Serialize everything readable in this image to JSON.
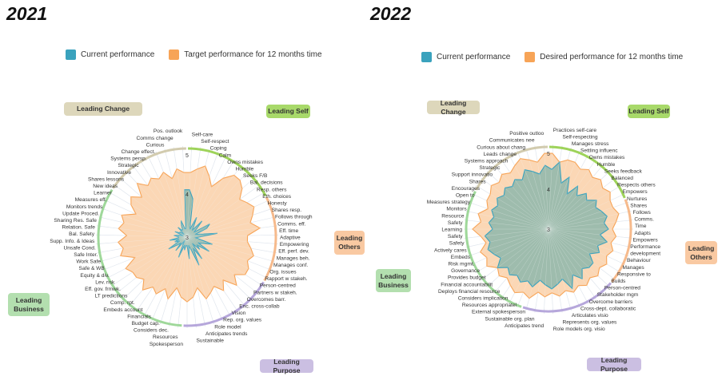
{
  "colors": {
    "current": "#3aa2bd",
    "target": "#f7a457",
    "current_fill": "#7fb3ab",
    "target_fill": "#fbd3ad",
    "self": "#a8d96a",
    "others": "#f9c9a2",
    "purpose": "#cbbfe2",
    "business": "#b3dfaf",
    "change": "#ddd7bb",
    "self_arc": "#9ed35a",
    "others_arc": "#f6ba8c",
    "purpose_arc": "#b6a7db",
    "business_arc": "#9fd89a",
    "change_arc": "#d2cbae"
  },
  "chart_data": [
    {
      "type": "radar",
      "title": "2021",
      "legend": [
        "Current performance",
        "Target performance for 12 months time"
      ],
      "rlim": [
        3,
        5
      ],
      "rticks": [
        "3",
        "4",
        "5"
      ],
      "groups": [
        {
          "key": "self",
          "label": "Leading Self",
          "count": 11
        },
        {
          "key": "others",
          "label": "Leading Others",
          "count": 10
        },
        {
          "key": "purpose",
          "label": "Leading Purpose",
          "count": 11
        },
        {
          "key": "business",
          "label": "Leading Business",
          "count": 21
        },
        {
          "key": "change",
          "label": "Leading Change",
          "count": 10
        }
      ],
      "axes": [
        "Self-care",
        "Self-respect",
        "Coping",
        "Calm",
        "Owns mistakes",
        "Humble",
        "Seeks F/B",
        "Bal. decisions",
        "Resp. others",
        "Eth. choices",
        "Honesty",
        "Shares resp.",
        "Follows through",
        "Comms. eff.",
        "Eff. time",
        "Adaptive",
        "Empowering",
        "Eff. perf. dev.",
        "Manages beh.",
        "Manages conf.",
        "Org. issues",
        "Rapport w stakeh.",
        "Person-centred",
        "Partners w stakeh.",
        "Overcomes barr.",
        "Enc. cross-collab",
        "Vision",
        "Rep. org. values",
        "Role model",
        "Anticipates trends",
        "Sustainable",
        "Spokesperson",
        "Resources",
        "Considers dec.",
        "Budget cap.",
        "Financials",
        "Embeds account",
        "Comp. rpt.",
        "LT predictions",
        "Eff. gov. frmwk.",
        "Lev. risk",
        "Equity & div.",
        "Safe & WB",
        "Work Safe",
        "Safe Inter.",
        "Unsafe Cond.",
        "Supp. Info. & Ideas",
        "Bal. Safety",
        "Relation. Safe",
        "Sharing Res. Safe",
        "Update Proced.",
        "Monitors trends",
        "Measures eff.",
        "Learner",
        "New ideas",
        "Shares lessons",
        "Innovative",
        "Strategic",
        "Systems persp.",
        "Change effect.",
        "Curious",
        "Comms change",
        "Pos. outlook"
      ],
      "series": [
        {
          "name": "Target performance for 12 months time",
          "values": [
            4.5,
            4.6,
            4.7,
            4.5,
            4.3,
            4.6,
            4.8,
            4.8,
            4.7,
            4.5,
            4.6,
            4.7,
            4.6,
            4.5,
            4.7,
            4.4,
            4.4,
            4.5,
            4.6,
            4.5,
            4.6,
            4.6,
            4.4,
            4.6,
            4.3,
            4.5,
            4.3,
            4.4,
            4.5,
            4.2,
            4.4,
            4.5,
            4.4,
            4.2,
            4.5,
            4.3,
            4.5,
            4.4,
            4.6,
            4.4,
            4.5,
            4.5,
            4.6,
            4.3,
            4.6,
            4.5,
            4.6,
            4.4,
            4.6,
            4.5,
            4.6,
            4.3,
            4.5,
            4.6,
            4.4,
            4.7,
            4.5,
            4.6,
            4.5,
            4.6,
            4.4,
            4.6,
            4.5
          ]
        },
        {
          "name": "Current performance",
          "values": [
            4.1,
            3.9,
            3.3,
            3.2,
            3.5,
            3.3,
            3.2,
            3.5,
            3.3,
            3.2,
            3.6,
            3.5,
            3.2,
            3.3,
            3.7,
            3.3,
            3.2,
            3.3,
            3.6,
            3.4,
            3.3,
            3.6,
            3.3,
            3.4,
            3.2,
            3.6,
            3.3,
            3.7,
            3.3,
            3.2,
            3.5,
            3.2,
            3.2,
            3.3,
            3.2,
            3.5,
            3.2,
            3.1,
            3.4,
            3.2,
            3.3,
            3.5,
            3.2,
            3.3,
            3.2,
            3.4,
            3.2,
            3.2,
            3.3,
            3.2,
            3.1,
            3.3,
            3.2,
            3.2,
            3.1,
            3.3,
            3.2,
            3.2,
            3.3,
            3.4,
            3.2,
            3.2,
            4.1
          ]
        }
      ]
    },
    {
      "type": "radar",
      "title": "2022",
      "legend": [
        "Current performance",
        "Desired performance for 12 months time"
      ],
      "rlim": [
        3,
        5
      ],
      "rticks": [
        "3",
        "4",
        "5"
      ],
      "groups": [
        {
          "key": "self",
          "label": "Leading Self",
          "count": 11
        },
        {
          "key": "others",
          "label": "Leading Others",
          "count": 10
        },
        {
          "key": "purpose",
          "label": "Leading Purpose",
          "count": 11
        },
        {
          "key": "business",
          "label": "Leading Business",
          "count": 16
        },
        {
          "key": "change",
          "label": "Leading Change",
          "count": 10
        }
      ],
      "axes": [
        "Practices self-care",
        "Self-respecting",
        "Manages stress",
        "Settling influenc",
        "Owns mistakes",
        "Humble",
        "Seeks feedback",
        "Balanced",
        "Respects others",
        "Empowers",
        "Nurtures",
        "Shares",
        "Follows",
        "Comms.",
        "Time",
        "Adapts",
        "Empowers",
        "Performance development",
        "Behaviour",
        "Manages",
        "Responsive to",
        "Builds",
        "Person-centred",
        "Stakeholder mgm",
        "Overcome barriers",
        "Cross-dept. collaboratic",
        "Articulates visio",
        "Represents org. values",
        "Role models org. visio",
        "Anticipates trend",
        "Sustainable org. plan",
        "External spokesperson",
        "Resources appropriatel",
        "Considers implication",
        "Deploys financial resource",
        "Financial accountabilit",
        "Provides budget",
        "Governance",
        "Risk mgmt.",
        "Embeds",
        "Actively cares",
        "Safety",
        "Safety",
        "Learning",
        "Safety",
        "Resource",
        "Monitors",
        "Measures strategy",
        "Open to",
        "Encourages",
        "Shares",
        "Support innovatio",
        "Strategic",
        "Systems approach",
        "Leads change",
        "Curious about chang",
        "Communicates nee",
        "Positive outloo"
      ],
      "series": [
        {
          "name": "Desired performance for 12 months time",
          "values": [
            4.9,
            4.7,
            4.8,
            4.8,
            4.7,
            4.8,
            4.7,
            4.8,
            4.7,
            4.8,
            4.7,
            4.7,
            4.8,
            4.7,
            4.6,
            4.7,
            4.6,
            4.7,
            4.6,
            4.7,
            4.6,
            4.7,
            4.6,
            4.7,
            4.6,
            4.7,
            4.6,
            4.7,
            4.6,
            4.7,
            4.6,
            4.8,
            4.7,
            4.8,
            4.7,
            4.6,
            4.7,
            4.6,
            4.8,
            4.7,
            4.8,
            4.6,
            4.7,
            4.9,
            4.7,
            4.8,
            4.6,
            4.7,
            4.7,
            4.8,
            4.7,
            4.8,
            4.7,
            4.8,
            4.9,
            4.8,
            4.7,
            4.9
          ]
        },
        {
          "name": "Current performance",
          "values": [
            4.5,
            4.7,
            4.2,
            4.4,
            4.0,
            4.3,
            4.1,
            4.3,
            4.2,
            4.4,
            4.3,
            4.4,
            4.5,
            4.4,
            4.5,
            4.3,
            4.5,
            4.3,
            4.4,
            4.2,
            4.4,
            4.4,
            4.3,
            4.5,
            4.3,
            4.6,
            4.3,
            4.4,
            4.5,
            4.4,
            4.3,
            4.5,
            4.4,
            4.5,
            4.4,
            4.5,
            4.4,
            4.6,
            4.4,
            4.5,
            4.6,
            4.5,
            4.6,
            4.4,
            4.5,
            4.4,
            4.5,
            4.4,
            4.5,
            4.4,
            4.5,
            4.4,
            4.5,
            4.4,
            4.6,
            4.5,
            4.4,
            4.6
          ]
        }
      ]
    }
  ]
}
